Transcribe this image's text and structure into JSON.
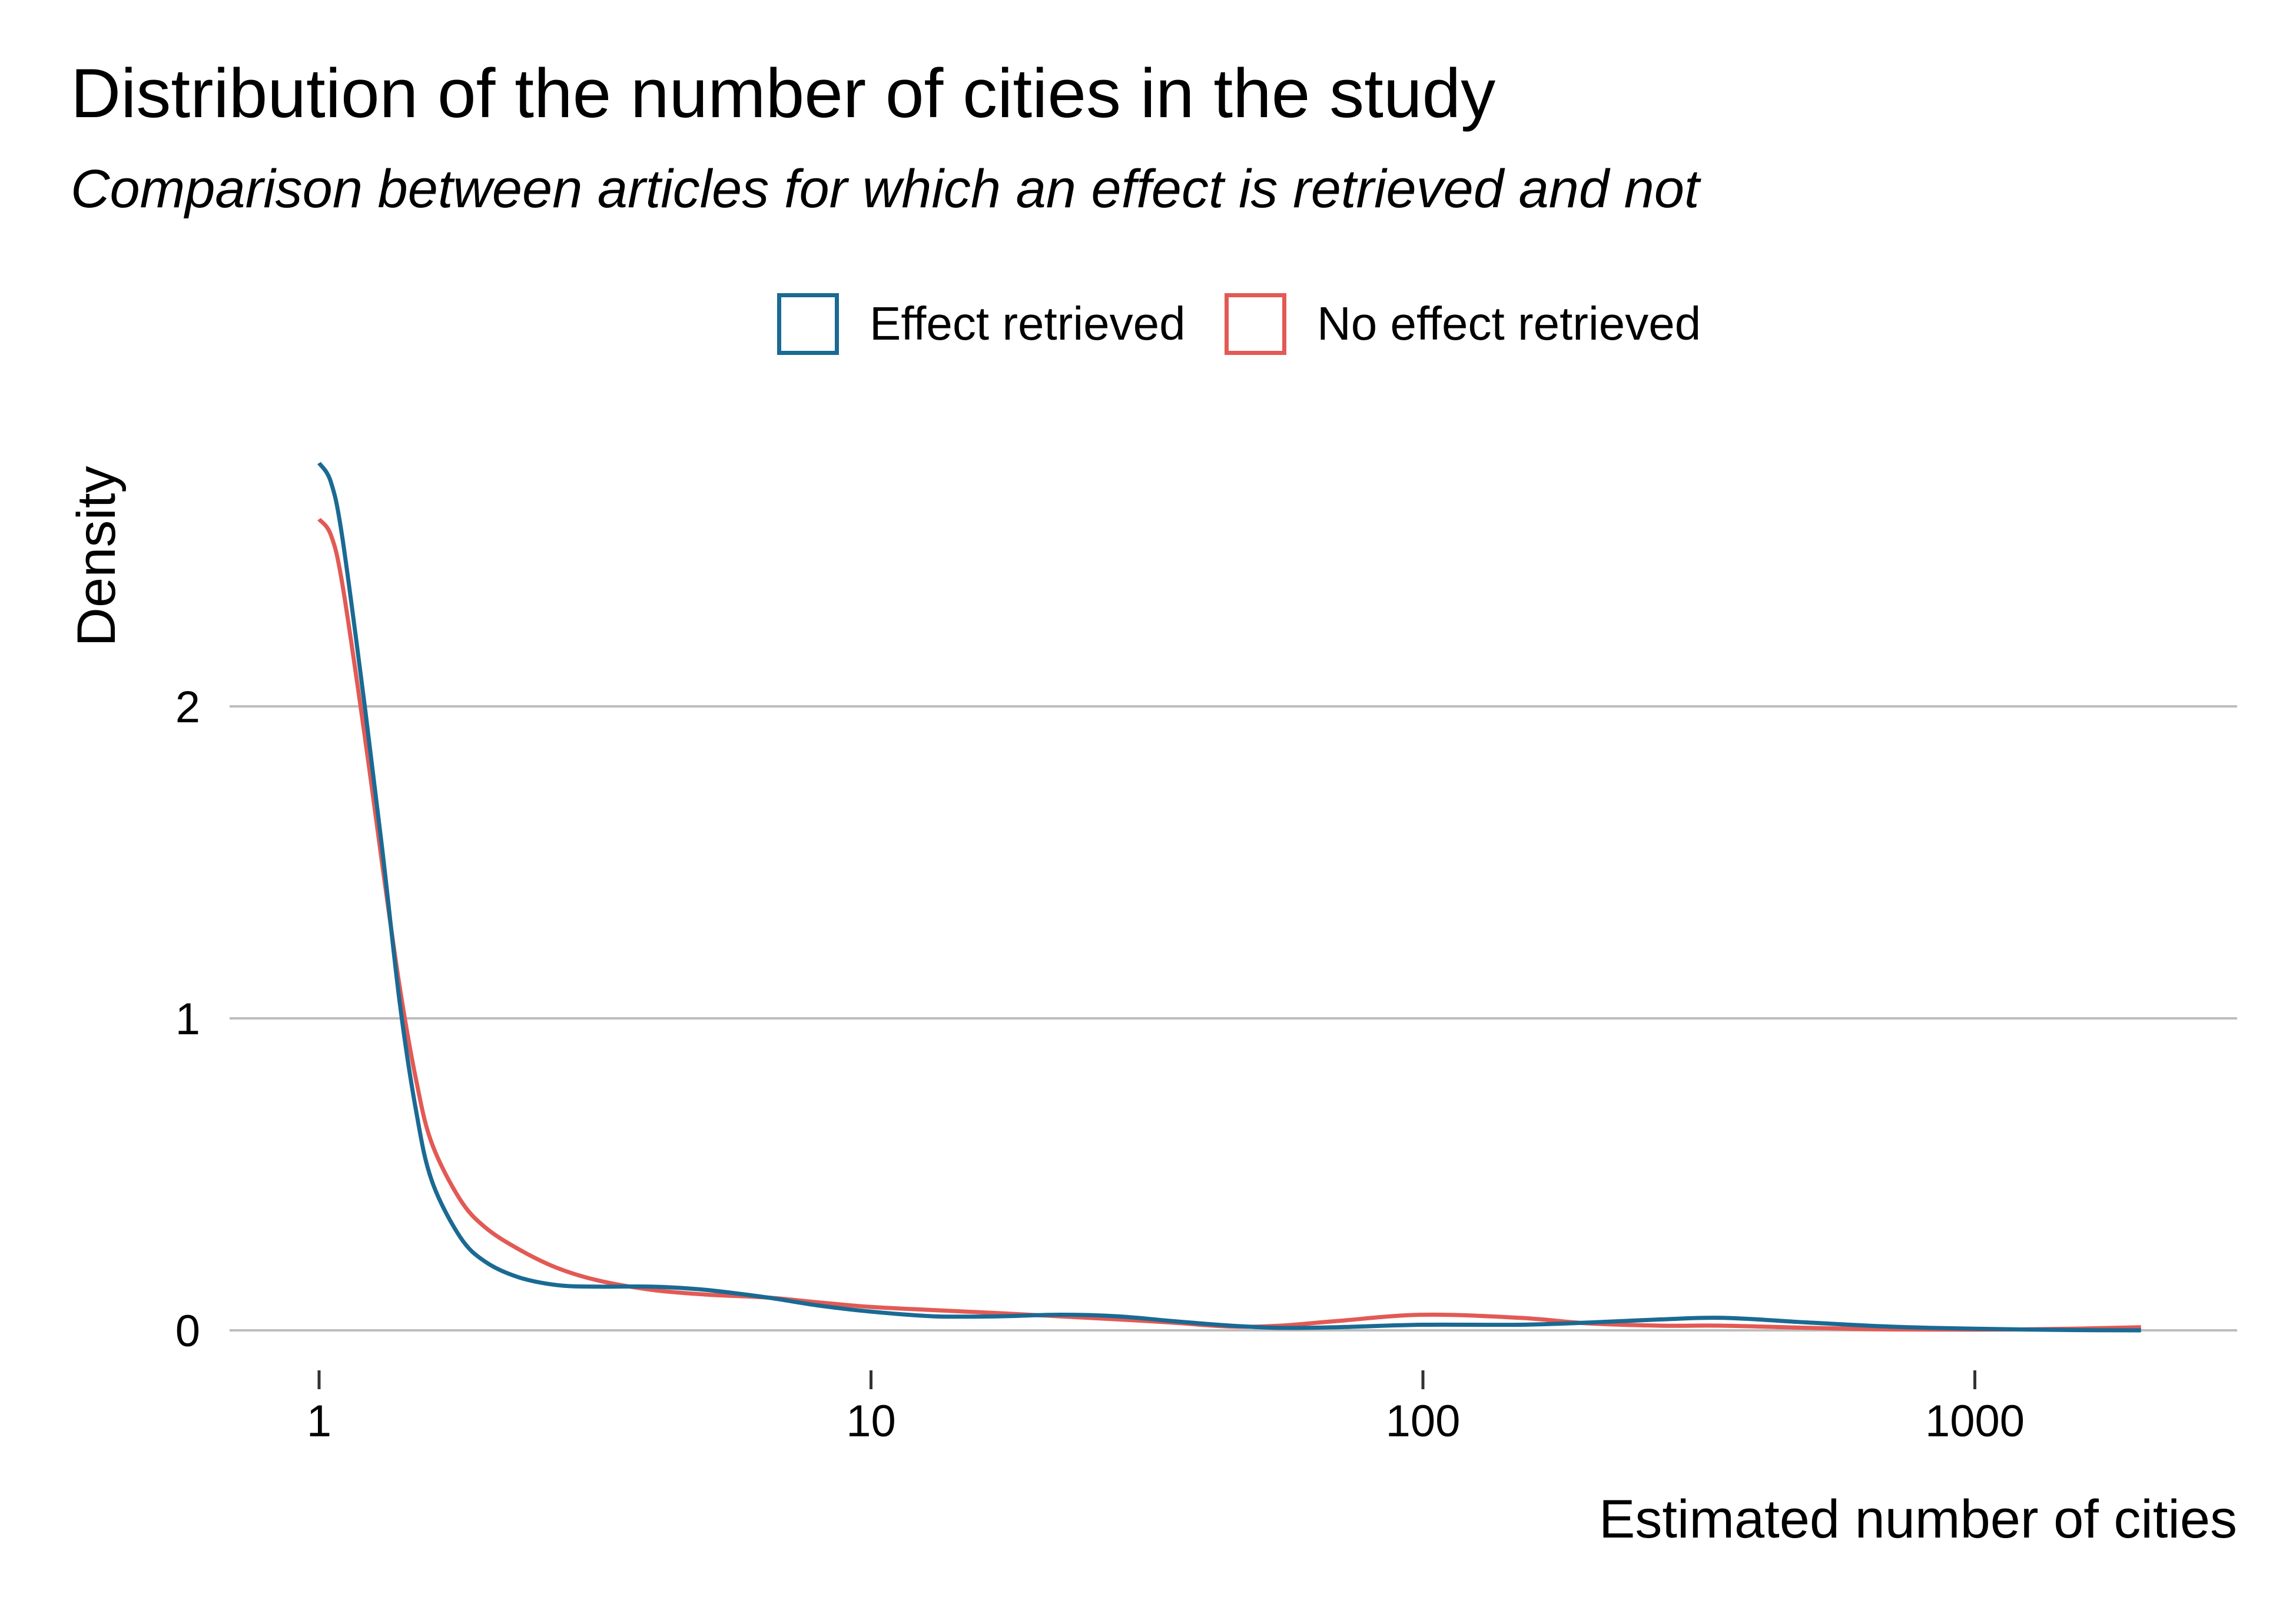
{
  "chart_data": {
    "type": "line",
    "title": "Distribution of the number of cities in the study",
    "subtitle": "Comparison between articles for which an effect is retrieved and not",
    "xlabel": "Estimated number of cities",
    "ylabel": "Density",
    "x_scale": "log10",
    "xlim": [
      0.67,
      4000
    ],
    "ylim": [
      0,
      2.8
    ],
    "x_ticks": [
      1,
      10,
      100,
      1000
    ],
    "x_tick_labels": [
      "1",
      "10",
      "100",
      "1000"
    ],
    "y_ticks": [
      0,
      1,
      2
    ],
    "y_tick_labels": [
      "0",
      "1",
      "2"
    ],
    "grid": "horizontal major",
    "legend_position": "top",
    "series": [
      {
        "name": "Effect retrieved",
        "color": "#1a6a93",
        "x": [
          1.0,
          1.05,
          1.1,
          1.2,
          1.3,
          1.4,
          1.5,
          1.6,
          1.8,
          2.0,
          2.3,
          2.7,
          3.2,
          4.0,
          5.0,
          6.5,
          8.0,
          10,
          13,
          17,
          22,
          28,
          35,
          45,
          55,
          70,
          100,
          150,
          200,
          270,
          350,
          500,
          700,
          1000,
          1500,
          2000
        ],
        "values": [
          2.78,
          2.72,
          2.55,
          2.05,
          1.55,
          1.05,
          0.7,
          0.48,
          0.3,
          0.22,
          0.17,
          0.145,
          0.14,
          0.14,
          0.13,
          0.105,
          0.08,
          0.06,
          0.045,
          0.045,
          0.05,
          0.045,
          0.03,
          0.015,
          0.008,
          0.01,
          0.018,
          0.018,
          0.025,
          0.035,
          0.04,
          0.025,
          0.012,
          0.005,
          0.001,
          0.0
        ]
      },
      {
        "name": "No effect retrieved",
        "color": "#e25a55",
        "x": [
          1.0,
          1.05,
          1.1,
          1.2,
          1.3,
          1.4,
          1.5,
          1.6,
          1.8,
          2.0,
          2.3,
          2.7,
          3.2,
          4.0,
          5.0,
          6.5,
          8.0,
          10,
          13,
          17,
          22,
          28,
          35,
          45,
          55,
          70,
          100,
          150,
          200,
          270,
          350,
          500,
          700,
          1000,
          1500,
          2000
        ],
        "values": [
          2.6,
          2.55,
          2.4,
          1.95,
          1.5,
          1.1,
          0.8,
          0.6,
          0.42,
          0.33,
          0.26,
          0.2,
          0.16,
          0.13,
          0.115,
          0.105,
          0.09,
          0.075,
          0.065,
          0.055,
          0.045,
          0.035,
          0.025,
          0.012,
          0.015,
          0.03,
          0.05,
          0.04,
          0.022,
          0.015,
          0.015,
          0.008,
          0.003,
          0.002,
          0.005,
          0.01
        ]
      }
    ]
  }
}
